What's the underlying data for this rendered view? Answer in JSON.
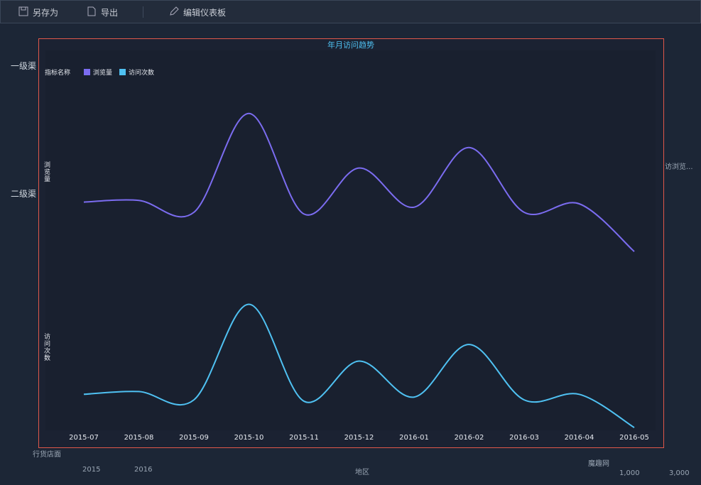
{
  "toolbar": [
    "另存为",
    "导出",
    "编辑仪表板"
  ],
  "background": [
    "一级渠",
    "二级渠",
    "行货店面",
    "2015",
    "2016",
    "地区",
    "魔趣网",
    "1,000",
    "3,000",
    "访浏览..."
  ],
  "chart_data": {
    "type": "line",
    "title": "年月访问趋势",
    "legend_title": "指标名称",
    "smooth": true,
    "categories": [
      "2015-07",
      "2015-08",
      "2015-09",
      "2015-10",
      "2015-11",
      "2015-12",
      "2016-01",
      "2016-02",
      "2016-03",
      "2016-04",
      "2016-05"
    ],
    "ylabel": "浏览量",
    "y2label": "访问次数",
    "ylim": [
      0,
      100
    ],
    "y2lim": [
      0,
      100
    ],
    "series": [
      {
        "name": "浏览量",
        "color": "#7b6cf0",
        "values": [
          36,
          37,
          30,
          88,
          29,
          56,
          33,
          68,
          30,
          35,
          7
        ]
      },
      {
        "name": "访问次数",
        "color": "#4fc1f2",
        "axis": "y2",
        "values": [
          26,
          28,
          22,
          91,
          21,
          50,
          24,
          62,
          22,
          26,
          2
        ]
      }
    ]
  }
}
